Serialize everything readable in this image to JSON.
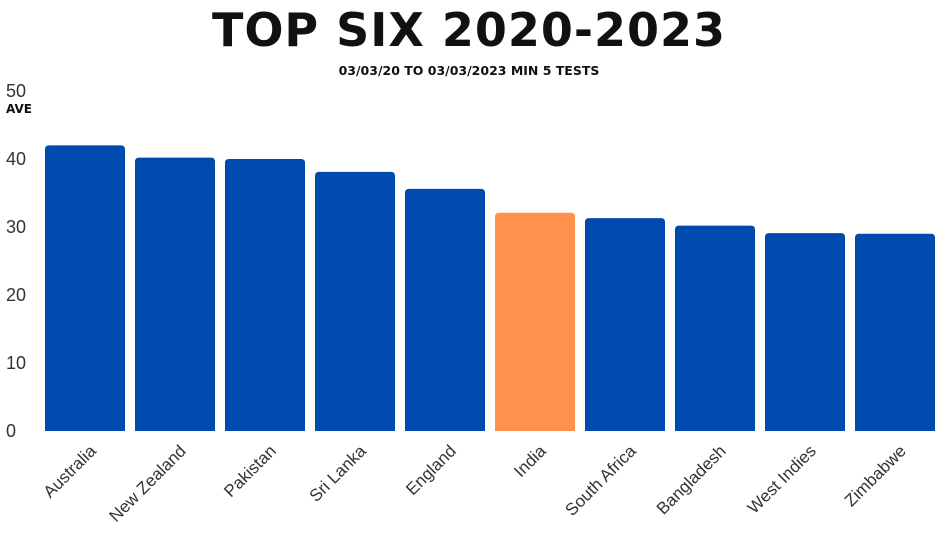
{
  "title": "TOP SIX 2020-2023",
  "subtitle": "03/03/20 TO 03/03/2023 MIN 5 TESTS",
  "colors": {
    "bar": "#004aad",
    "highlight": "#ff914d"
  },
  "chart_data": {
    "type": "bar",
    "title": "TOP SIX 2020-2023",
    "subtitle": "03/03/20 TO 03/03/2023 MIN 5 TESTS",
    "ylabel": "AVE",
    "xlabel": "",
    "ylim": [
      0,
      50
    ],
    "yticks": [
      0,
      10,
      20,
      30,
      40,
      50
    ],
    "grid": false,
    "categories": [
      "Australia",
      "New Zealand",
      "Pakistan",
      "Sri Lanka",
      "England",
      "India",
      "South Africa",
      "Bangladesh",
      "West Indies",
      "Zimbabwe"
    ],
    "values": [
      42.0,
      40.2,
      40.0,
      38.1,
      35.6,
      32.1,
      31.3,
      30.2,
      29.1,
      29.0
    ],
    "highlight": "India"
  }
}
